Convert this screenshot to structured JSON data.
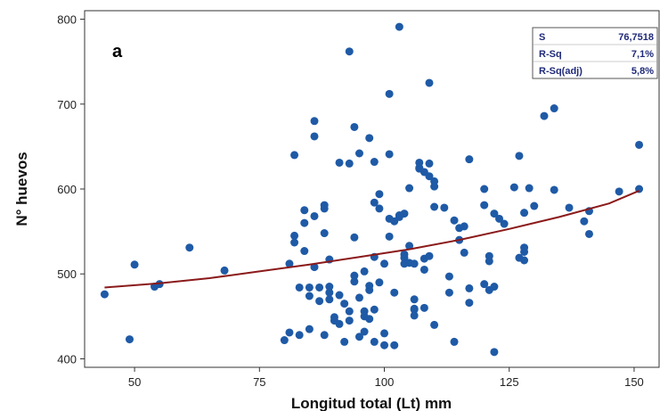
{
  "chart_data": {
    "type": "scatter",
    "panel_label": "a",
    "xlabel": "Longitud total (Lt) mm",
    "ylabel": "N° huevos",
    "xlim": [
      40,
      155
    ],
    "ylim": [
      390,
      810
    ],
    "x_ticks": [
      50,
      75,
      100,
      125,
      150
    ],
    "y_ticks": [
      400,
      500,
      600,
      700,
      800
    ],
    "grid": false,
    "colors": {
      "points": "#1f5aa6",
      "fit_line": "#8b1a1a",
      "stats_text": "#1f2a7a"
    },
    "stats_table": [
      {
        "label": "S",
        "value": "76,7518"
      },
      {
        "label": "R-Sq",
        "value": "7,1%"
      },
      {
        "label": "R-Sq(adj)",
        "value": "5,8%"
      }
    ],
    "fit_line": {
      "x": [
        44,
        55,
        65,
        75,
        85,
        95,
        105,
        115,
        125,
        135,
        145,
        151
      ],
      "y": [
        484,
        489,
        495,
        503,
        511,
        520,
        529,
        540,
        553,
        567,
        583,
        598
      ]
    },
    "points": {
      "x": [
        44,
        49,
        50,
        54,
        55,
        61,
        68,
        80,
        81,
        81,
        82,
        82,
        82,
        83,
        83,
        84,
        84,
        84,
        85,
        85,
        85,
        86,
        86,
        86,
        86,
        87,
        87,
        88,
        88,
        88,
        88,
        89,
        89,
        89,
        89,
        90,
        90,
        91,
        91,
        91,
        92,
        92,
        93,
        93,
        93,
        93,
        94,
        94,
        94,
        94,
        95,
        95,
        95,
        96,
        96,
        96,
        96,
        97,
        97,
        97,
        97,
        98,
        98,
        98,
        98,
        98,
        99,
        99,
        99,
        100,
        100,
        100,
        101,
        101,
        101,
        101,
        102,
        102,
        102,
        103,
        103,
        103,
        104,
        104,
        104,
        104,
        105,
        105,
        105,
        106,
        106,
        106,
        106,
        106,
        107,
        107,
        107,
        108,
        108,
        108,
        108,
        109,
        109,
        109,
        109,
        110,
        110,
        110,
        110,
        112,
        113,
        113,
        114,
        114,
        115,
        115,
        116,
        116,
        117,
        117,
        117,
        120,
        120,
        120,
        121,
        121,
        121,
        122,
        122,
        122,
        123,
        124,
        126,
        127,
        127,
        128,
        128,
        128,
        128,
        129,
        130,
        132,
        134,
        134,
        137,
        140,
        141,
        141,
        147,
        151,
        151
      ],
      "y": [
        476,
        423,
        511,
        485,
        488,
        531,
        504,
        422,
        431,
        512,
        537,
        640,
        545,
        428,
        484,
        560,
        575,
        527,
        435,
        474,
        484,
        568,
        662,
        680,
        508,
        468,
        484,
        581,
        577,
        548,
        428,
        470,
        478,
        485,
        517,
        445,
        449,
        441,
        631,
        475,
        420,
        465,
        456,
        445,
        762,
        630,
        543,
        498,
        491,
        673,
        472,
        426,
        642,
        456,
        432,
        450,
        503,
        481,
        660,
        447,
        486,
        420,
        632,
        584,
        520,
        458,
        577,
        490,
        594,
        430,
        512,
        416,
        641,
        712,
        565,
        544,
        562,
        478,
        416,
        569,
        567,
        791,
        571,
        523,
        512,
        519,
        533,
        601,
        513,
        459,
        470,
        451,
        458,
        512,
        631,
        624,
        625,
        620,
        518,
        505,
        460,
        725,
        630,
        615,
        521,
        609,
        603,
        579,
        440,
        578,
        497,
        478,
        420,
        563,
        540,
        554,
        556,
        525,
        635,
        466,
        483,
        600,
        581,
        488,
        521,
        481,
        515,
        485,
        408,
        571,
        565,
        559,
        602,
        519,
        639,
        516,
        531,
        572,
        526,
        601,
        580,
        686,
        599,
        695,
        578,
        562,
        547,
        574,
        597,
        652,
        600
      ]
    }
  }
}
